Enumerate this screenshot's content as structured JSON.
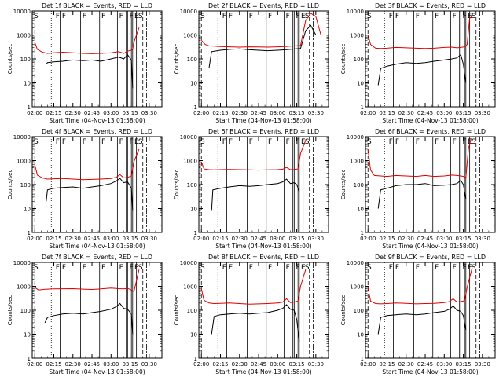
{
  "colors": {
    "events": "#000000",
    "lld": "#e00000",
    "axes": "#000000",
    "background": "#ffffff"
  },
  "x_ticks": [
    "02:00",
    "02:15",
    "02:30",
    "02:45",
    "03:00",
    "03:15",
    "03:30"
  ],
  "y_ticks": [
    "1",
    "10",
    "100",
    "1000",
    "10000"
  ],
  "ylabel": "Counts/sec",
  "xlabel": "Start Time (04-Nov-13 01:58:00)",
  "flags": [
    "F",
    "F",
    "F",
    "F",
    "F",
    "F",
    "E",
    "S"
  ],
  "chart_data": [
    {
      "type": "line",
      "title": "Det 1f BLACK = Events, RED = LLD",
      "x_range": [
        "01:58:00",
        "03:40:00"
      ],
      "ylim": [
        1,
        10000
      ],
      "y_scale": "log",
      "series": [
        {
          "name": "Events",
          "color": "#000000",
          "x": [
            "02:09",
            "02:10",
            "02:15",
            "02:22",
            "02:30",
            "02:38",
            "02:45",
            "02:52",
            "03:00",
            "03:06",
            "03:10",
            "03:13",
            "03:16",
            "03:17"
          ],
          "y": [
            60,
            70,
            75,
            80,
            90,
            85,
            90,
            80,
            100,
            120,
            100,
            150,
            90,
            6
          ]
        },
        {
          "name": "LLD",
          "color": "#e00000",
          "x": [
            "02:00",
            "02:02",
            "02:06",
            "02:10",
            "02:15",
            "02:22",
            "02:30",
            "02:38",
            "02:45",
            "02:52",
            "03:00",
            "03:06",
            "03:10",
            "03:13",
            "03:16",
            "03:17",
            "03:18",
            "03:22"
          ],
          "y": [
            500,
            250,
            190,
            170,
            180,
            190,
            180,
            170,
            165,
            170,
            180,
            200,
            170,
            210,
            230,
            250,
            500,
            2000
          ]
        }
      ]
    },
    {
      "type": "line",
      "title": "Det 2f BLACK = Events, RED = LLD",
      "x_range": [
        "01:58:00",
        "03:40:00"
      ],
      "ylim": [
        1,
        10000
      ],
      "y_scale": "log",
      "series": [
        {
          "name": "Events",
          "color": "#000000",
          "x": [
            "02:06",
            "02:08",
            "02:15",
            "02:22",
            "02:30",
            "02:38",
            "02:45",
            "02:52",
            "03:00",
            "03:06",
            "03:10",
            "03:14",
            "03:18",
            "03:22",
            "03:26",
            "03:30"
          ],
          "y": [
            40,
            200,
            230,
            250,
            260,
            240,
            230,
            220,
            230,
            240,
            250,
            260,
            270,
            1500,
            2500,
            1000
          ]
        },
        {
          "name": "LLD",
          "color": "#e00000",
          "x": [
            "02:00",
            "02:03",
            "02:06",
            "02:10",
            "02:15",
            "02:22",
            "02:30",
            "02:38",
            "02:45",
            "02:52",
            "03:00",
            "03:06",
            "03:10",
            "03:14",
            "03:18",
            "03:22",
            "03:26",
            "03:30",
            "03:34"
          ],
          "y": [
            600,
            400,
            350,
            340,
            330,
            320,
            310,
            320,
            315,
            310,
            320,
            330,
            340,
            350,
            360,
            4000,
            8000,
            6000,
            1000
          ]
        }
      ]
    },
    {
      "type": "line",
      "title": "Det 3f BLACK = Events, RED = LLD",
      "x_range": [
        "01:58:00",
        "03:40:00"
      ],
      "ylim": [
        1,
        10000
      ],
      "y_scale": "log",
      "series": [
        {
          "name": "Events",
          "color": "#000000",
          "x": [
            "02:08",
            "02:10",
            "02:15",
            "02:22",
            "02:30",
            "02:38",
            "02:45",
            "02:52",
            "03:00",
            "03:06",
            "03:10",
            "03:13",
            "03:15",
            "03:17"
          ],
          "y": [
            8,
            40,
            50,
            60,
            70,
            65,
            70,
            80,
            90,
            100,
            110,
            150,
            60,
            10
          ]
        },
        {
          "name": "LLD",
          "color": "#e00000",
          "x": [
            "02:00",
            "02:02",
            "02:06",
            "02:10",
            "02:15",
            "02:22",
            "02:30",
            "02:38",
            "02:45",
            "02:52",
            "03:00",
            "03:06",
            "03:10",
            "03:13",
            "03:16",
            "03:18",
            "03:20",
            "03:22"
          ],
          "y": [
            1000,
            400,
            280,
            270,
            280,
            300,
            290,
            280,
            270,
            280,
            300,
            310,
            290,
            300,
            320,
            400,
            5000,
            6000
          ]
        }
      ]
    },
    {
      "type": "line",
      "title": "Det 4f BLACK = Events, RED = LLD",
      "x_range": [
        "01:58:00",
        "03:40:00"
      ],
      "ylim": [
        1,
        10000
      ],
      "y_scale": "log",
      "series": [
        {
          "name": "Events",
          "color": "#000000",
          "x": [
            "02:09",
            "02:10",
            "02:15",
            "02:22",
            "02:30",
            "02:38",
            "02:45",
            "02:52",
            "03:00",
            "03:04",
            "03:07",
            "03:10",
            "03:13",
            "03:16",
            "03:17"
          ],
          "y": [
            20,
            60,
            70,
            75,
            80,
            70,
            80,
            90,
            110,
            140,
            180,
            120,
            130,
            70,
            8
          ]
        },
        {
          "name": "LLD",
          "color": "#e00000",
          "x": [
            "02:00",
            "02:02",
            "02:06",
            "02:10",
            "02:15",
            "02:22",
            "02:30",
            "02:38",
            "02:45",
            "02:52",
            "03:00",
            "03:04",
            "03:07",
            "03:10",
            "03:13",
            "03:16",
            "03:18",
            "03:22"
          ],
          "y": [
            700,
            250,
            190,
            170,
            175,
            180,
            170,
            160,
            165,
            170,
            180,
            200,
            260,
            190,
            200,
            230,
            900,
            3000
          ]
        }
      ]
    },
    {
      "type": "line",
      "title": "Det 5f BLACK = Events, RED = LLD",
      "x_range": [
        "01:58:00",
        "03:40:00"
      ],
      "ylim": [
        1,
        10000
      ],
      "y_scale": "log",
      "series": [
        {
          "name": "Events",
          "color": "#000000",
          "x": [
            "02:08",
            "02:09",
            "02:15",
            "02:22",
            "02:30",
            "02:38",
            "02:45",
            "02:52",
            "03:00",
            "03:04",
            "03:07",
            "03:10",
            "03:13",
            "03:15",
            "03:17"
          ],
          "y": [
            8,
            60,
            70,
            80,
            90,
            85,
            90,
            100,
            110,
            130,
            170,
            110,
            120,
            100,
            50
          ]
        },
        {
          "name": "LLD",
          "color": "#e00000",
          "x": [
            "02:00",
            "02:02",
            "02:06",
            "02:10",
            "02:15",
            "02:22",
            "02:30",
            "02:38",
            "02:45",
            "02:52",
            "03:00",
            "03:04",
            "03:07",
            "03:10",
            "03:13",
            "03:16",
            "03:18",
            "03:22"
          ],
          "y": [
            900,
            450,
            420,
            410,
            420,
            430,
            420,
            410,
            400,
            410,
            420,
            440,
            520,
            420,
            430,
            450,
            2000,
            7000
          ]
        }
      ]
    },
    {
      "type": "line",
      "title": "Det 6f BLACK = Events, RED = LLD",
      "x_range": [
        "01:58:00",
        "03:40:00"
      ],
      "ylim": [
        1,
        10000
      ],
      "y_scale": "log",
      "series": [
        {
          "name": "Events",
          "color": "#000000",
          "x": [
            "02:08",
            "02:10",
            "02:15",
            "02:22",
            "02:30",
            "02:38",
            "02:45",
            "02:52",
            "03:00",
            "03:06",
            "03:10",
            "03:13",
            "03:15",
            "03:17"
          ],
          "y": [
            10,
            60,
            70,
            90,
            100,
            100,
            110,
            90,
            95,
            100,
            110,
            150,
            100,
            25
          ]
        },
        {
          "name": "LLD",
          "color": "#e00000",
          "x": [
            "02:00",
            "02:02",
            "02:05",
            "02:10",
            "02:15",
            "02:22",
            "02:30",
            "02:38",
            "02:45",
            "02:52",
            "03:00",
            "03:06",
            "03:10",
            "03:13",
            "03:15",
            "03:17",
            "03:19",
            "03:21"
          ],
          "y": [
            3000,
            400,
            240,
            230,
            220,
            240,
            230,
            220,
            240,
            220,
            230,
            250,
            240,
            230,
            220,
            200,
            3000,
            8000
          ]
        }
      ]
    },
    {
      "type": "line",
      "title": "Det 7f BLACK = Events, RED = LLD",
      "x_range": [
        "01:58:00",
        "03:40:00"
      ],
      "ylim": [
        1,
        10000
      ],
      "y_scale": "log",
      "series": [
        {
          "name": "Events",
          "color": "#000000",
          "x": [
            "02:08",
            "02:10",
            "02:15",
            "02:22",
            "02:30",
            "02:38",
            "02:45",
            "02:52",
            "03:00",
            "03:04",
            "03:07",
            "03:10",
            "03:13",
            "03:16",
            "03:17"
          ],
          "y": [
            30,
            50,
            60,
            70,
            75,
            70,
            80,
            90,
            110,
            140,
            190,
            120,
            110,
            70,
            10
          ]
        },
        {
          "name": "LLD",
          "color": "#e00000",
          "x": [
            "02:00",
            "02:03",
            "02:08",
            "02:15",
            "02:22",
            "02:30",
            "02:38",
            "02:45",
            "02:52",
            "03:00",
            "03:06",
            "03:10",
            "03:13",
            "03:16",
            "03:18",
            "03:22"
          ],
          "y": [
            900,
            700,
            750,
            780,
            790,
            800,
            760,
            740,
            780,
            850,
            800,
            780,
            820,
            700,
            600,
            5000
          ]
        }
      ]
    },
    {
      "type": "line",
      "title": "Det 8f BLACK = Events, RED = LLD",
      "x_range": [
        "01:58:00",
        "03:40:00"
      ],
      "ylim": [
        1,
        10000
      ],
      "y_scale": "log",
      "series": [
        {
          "name": "Events",
          "color": "#000000",
          "x": [
            "02:08",
            "02:10",
            "02:15",
            "02:22",
            "02:30",
            "02:38",
            "02:45",
            "02:52",
            "03:00",
            "03:04",
            "03:07",
            "03:10",
            "03:13",
            "03:15",
            "03:17"
          ],
          "y": [
            10,
            55,
            65,
            70,
            75,
            70,
            75,
            80,
            100,
            120,
            170,
            110,
            100,
            40,
            5
          ]
        },
        {
          "name": "LLD",
          "color": "#e00000",
          "x": [
            "02:00",
            "02:02",
            "02:06",
            "02:10",
            "02:15",
            "02:22",
            "02:30",
            "02:38",
            "02:45",
            "02:52",
            "03:00",
            "03:04",
            "03:07",
            "03:10",
            "03:13",
            "03:16",
            "03:18",
            "03:22"
          ],
          "y": [
            800,
            260,
            200,
            190,
            195,
            200,
            190,
            180,
            185,
            190,
            200,
            220,
            300,
            210,
            220,
            240,
            1000,
            5000
          ]
        }
      ]
    },
    {
      "type": "line",
      "title": "Det 9f BLACK = Events, RED = LLD",
      "x_range": [
        "01:58:00",
        "03:40:00"
      ],
      "ylim": [
        1,
        10000
      ],
      "y_scale": "log",
      "series": [
        {
          "name": "Events",
          "color": "#000000",
          "x": [
            "02:08",
            "02:10",
            "02:15",
            "02:22",
            "02:30",
            "02:38",
            "02:45",
            "02:52",
            "03:00",
            "03:04",
            "03:07",
            "03:10",
            "03:13",
            "03:15",
            "03:17"
          ],
          "y": [
            10,
            50,
            60,
            65,
            70,
            65,
            70,
            80,
            90,
            110,
            150,
            100,
            90,
            60,
            15
          ]
        },
        {
          "name": "LLD",
          "color": "#e00000",
          "x": [
            "02:00",
            "02:02",
            "02:06",
            "02:10",
            "02:15",
            "02:22",
            "02:30",
            "02:38",
            "02:45",
            "02:52",
            "03:00",
            "03:04",
            "03:07",
            "03:10",
            "03:13",
            "03:16",
            "03:18",
            "03:22"
          ],
          "y": [
            900,
            240,
            190,
            185,
            190,
            200,
            195,
            185,
            190,
            195,
            210,
            230,
            300,
            220,
            230,
            250,
            900,
            6000
          ]
        }
      ]
    }
  ]
}
